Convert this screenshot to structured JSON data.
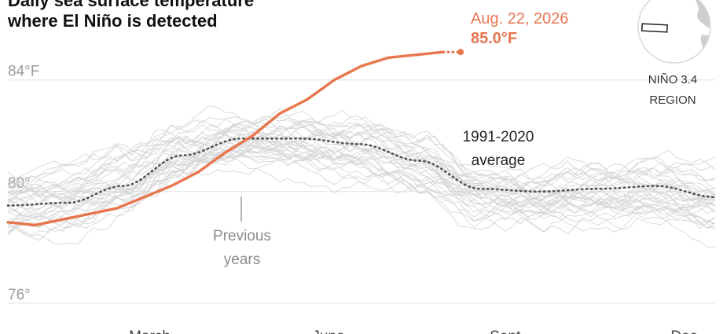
{
  "title_lines": [
    "Daily sea surface temperature",
    "where El Niño is detected"
  ],
  "colors": {
    "current": "#e8764c",
    "history": "#d3d3d3",
    "average": "#555555",
    "grid": "#e6e6e6"
  },
  "chart_data": {
    "type": "line",
    "y_unit": "°F",
    "ylim": [
      75.6,
      85.4
    ],
    "y_ticks": [
      {
        "value": 84,
        "label": "84°F"
      },
      {
        "value": 80,
        "label": "80°"
      },
      {
        "value": 76,
        "label": "76°"
      }
    ],
    "x_ticks": [
      "March",
      "June",
      "Sept.",
      "Dec."
    ],
    "grid": true,
    "series": [
      {
        "name": "2026",
        "style": "solid",
        "x": [
          "Jan. 1",
          "Jan. 15",
          "Jan. 29",
          "Feb. 12",
          "Feb. 26",
          "Mar. 12",
          "Mar. 26",
          "Apr. 9",
          "Apr. 23",
          "May 7",
          "May 21",
          "Jun. 4",
          "Jun. 18",
          "Jul. 2",
          "Jul. 16",
          "Jul. 30",
          "Aug. 13",
          "Aug. 22"
        ],
        "y": [
          78.9,
          78.8,
          79.0,
          79.2,
          79.4,
          79.8,
          80.2,
          80.7,
          81.4,
          82.0,
          82.8,
          83.3,
          84.0,
          84.5,
          84.8,
          84.9,
          85.0,
          85.0
        ]
      },
      {
        "name": "1991-2020 average",
        "style": "dotted",
        "x": [
          "Jan. 1",
          "Feb. 1",
          "Mar. 1",
          "Apr. 1",
          "May 1",
          "Jun. 1",
          "Jul. 1",
          "Aug. 1",
          "Sep. 1",
          "Oct. 1",
          "Nov. 1",
          "Dec. 1",
          "Dec. 31"
        ],
        "y": [
          79.5,
          79.6,
          80.2,
          81.3,
          81.9,
          81.9,
          81.7,
          81.1,
          80.1,
          80.0,
          80.1,
          80.2,
          79.8
        ]
      }
    ],
    "background_series_label": "Previous years",
    "annotations": {
      "previous_years": [
        "Previous",
        "years"
      ],
      "average": [
        "1991-2020",
        "average"
      ],
      "latest_date": "Aug. 22, 2026",
      "latest_value": "85.0°F"
    }
  },
  "map_label": [
    "NIÑO 3.4",
    "REGION"
  ]
}
